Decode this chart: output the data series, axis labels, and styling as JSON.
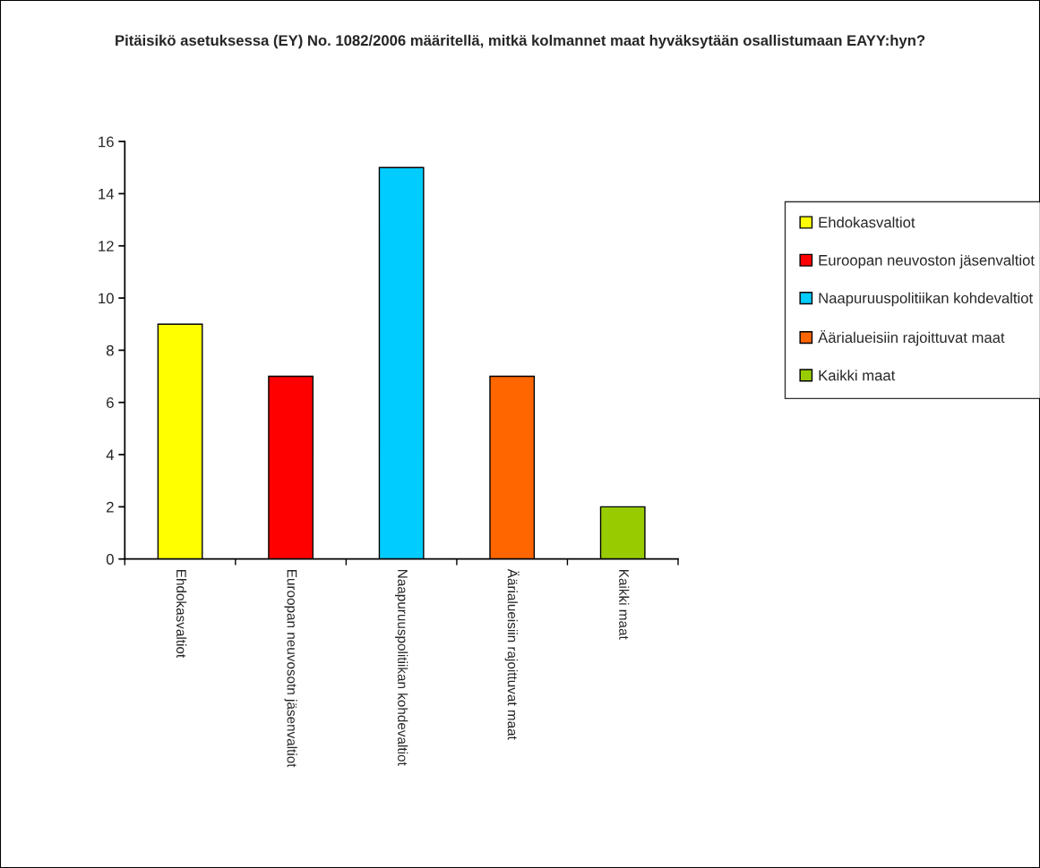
{
  "chart_data": {
    "type": "bar",
    "title": "Pitäisikö asetuksessa (EY) No. 1082/2006 määritellä, mitkä kolmannet maat hyväksytään osallistumaan EAYY:hyn?",
    "categories": [
      "Ehdokasvaltiot",
      "Euroopan neuvosotn jäsenvaltiot",
      "Naapuruuspolitiikan kohdevaltiot",
      "Äärialueisiin rajoittuvat maat",
      "Kaikki maat"
    ],
    "series": [
      {
        "name": "Ehdokasvaltiot",
        "color": "#ffff00",
        "values": [
          9,
          null,
          null,
          null,
          null
        ]
      },
      {
        "name": "Euroopan neuvoston jäsenvaltiot",
        "color": "#ff0000",
        "values": [
          null,
          7,
          null,
          null,
          null
        ]
      },
      {
        "name": "Naapuruuspolitiikan kohdevaltiot",
        "color": "#00ccff",
        "values": [
          null,
          null,
          15,
          null,
          null
        ]
      },
      {
        "name": "Äärialueisiin rajoittuvat maat",
        "color": "#ff6600",
        "values": [
          null,
          null,
          null,
          7,
          null
        ]
      },
      {
        "name": "Kaikki maat",
        "color": "#99cc00",
        "values": [
          null,
          null,
          null,
          null,
          2
        ]
      }
    ],
    "ylim": [
      0,
      16
    ],
    "yticks": [
      0,
      2,
      4,
      6,
      8,
      10,
      12,
      14,
      16
    ],
    "grid": false,
    "legend": "right"
  }
}
